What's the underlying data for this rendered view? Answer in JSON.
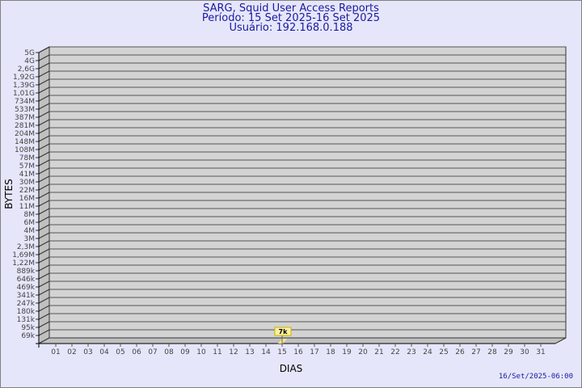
{
  "chart_data": {
    "type": "bar",
    "title": "SARG, Squid User Access Reports",
    "subtitle_period": "Período: 15 Set 2025-16 Set 2025",
    "subtitle_user": "Usuário: 192.168.0.188",
    "xlabel": "DIAS",
    "ylabel": "BYTES",
    "y_scale": "log",
    "grid": true,
    "y_tick_labels": [
      "5G",
      "4G",
      "2,6G",
      "1,92G",
      "1,39G",
      "1,01G",
      "734M",
      "533M",
      "387M",
      "281M",
      "204M",
      "148M",
      "108M",
      "78M",
      "57M",
      "41M",
      "30M",
      "22M",
      "16M",
      "11M",
      "8M",
      "6M",
      "4M",
      "3M",
      "2,3M",
      "1,69M",
      "1,22M",
      "889k",
      "646k",
      "469k",
      "341k",
      "247k",
      "180k",
      "131k",
      "95k",
      "69k"
    ],
    "categories": [
      "01",
      "02",
      "03",
      "04",
      "05",
      "06",
      "07",
      "08",
      "09",
      "10",
      "11",
      "12",
      "13",
      "14",
      "15",
      "16",
      "17",
      "18",
      "19",
      "20",
      "21",
      "22",
      "23",
      "24",
      "25",
      "26",
      "27",
      "28",
      "29",
      "30",
      "31"
    ],
    "bars": [
      {
        "category": "15",
        "value": 7000,
        "label": "7k"
      }
    ],
    "colors": {
      "background": "#e6e6fa",
      "wall": "#d3d3d3",
      "side": "#c0c0c0",
      "bar": "#ffe680",
      "label_bg": "#fff0a0",
      "text": "#1a1aa0"
    }
  },
  "footer": {
    "timestamp": "16/Set/2025-06:00"
  }
}
